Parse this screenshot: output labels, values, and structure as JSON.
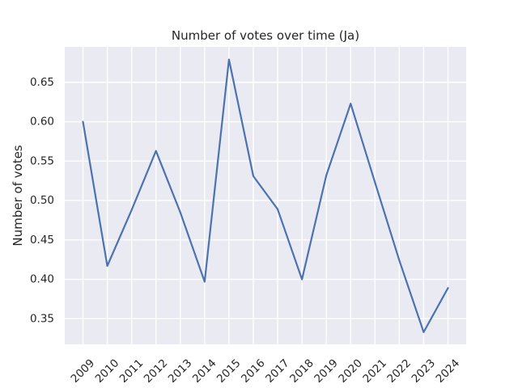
{
  "chart_data": {
    "type": "line",
    "title": "Number of votes over time (Ja)",
    "xlabel": "",
    "ylabel": "Number of votes",
    "x": [
      "2009",
      "2010",
      "2011",
      "2012",
      "2013",
      "2014",
      "2015",
      "2016",
      "2017",
      "2018",
      "2019",
      "2020",
      "2021",
      "2022",
      "2023",
      "2024"
    ],
    "series": [
      {
        "values": [
          0.6,
          0.417,
          0.488,
          0.563,
          0.485,
          0.397,
          0.679,
          0.531,
          0.489,
          0.4,
          0.532,
          0.623,
          0.523,
          0.424,
          0.333,
          0.389
        ],
        "color": "#4c72b0"
      }
    ],
    "ylim": [
      0.3175,
      0.695
    ],
    "yticks": [
      "0.35",
      "0.40",
      "0.45",
      "0.50",
      "0.55",
      "0.60",
      "0.65"
    ],
    "grid": true,
    "legend": "none",
    "colors": {
      "plot_background": "#eaeaf2",
      "grid": "#ffffff",
      "text": "#262626"
    }
  }
}
